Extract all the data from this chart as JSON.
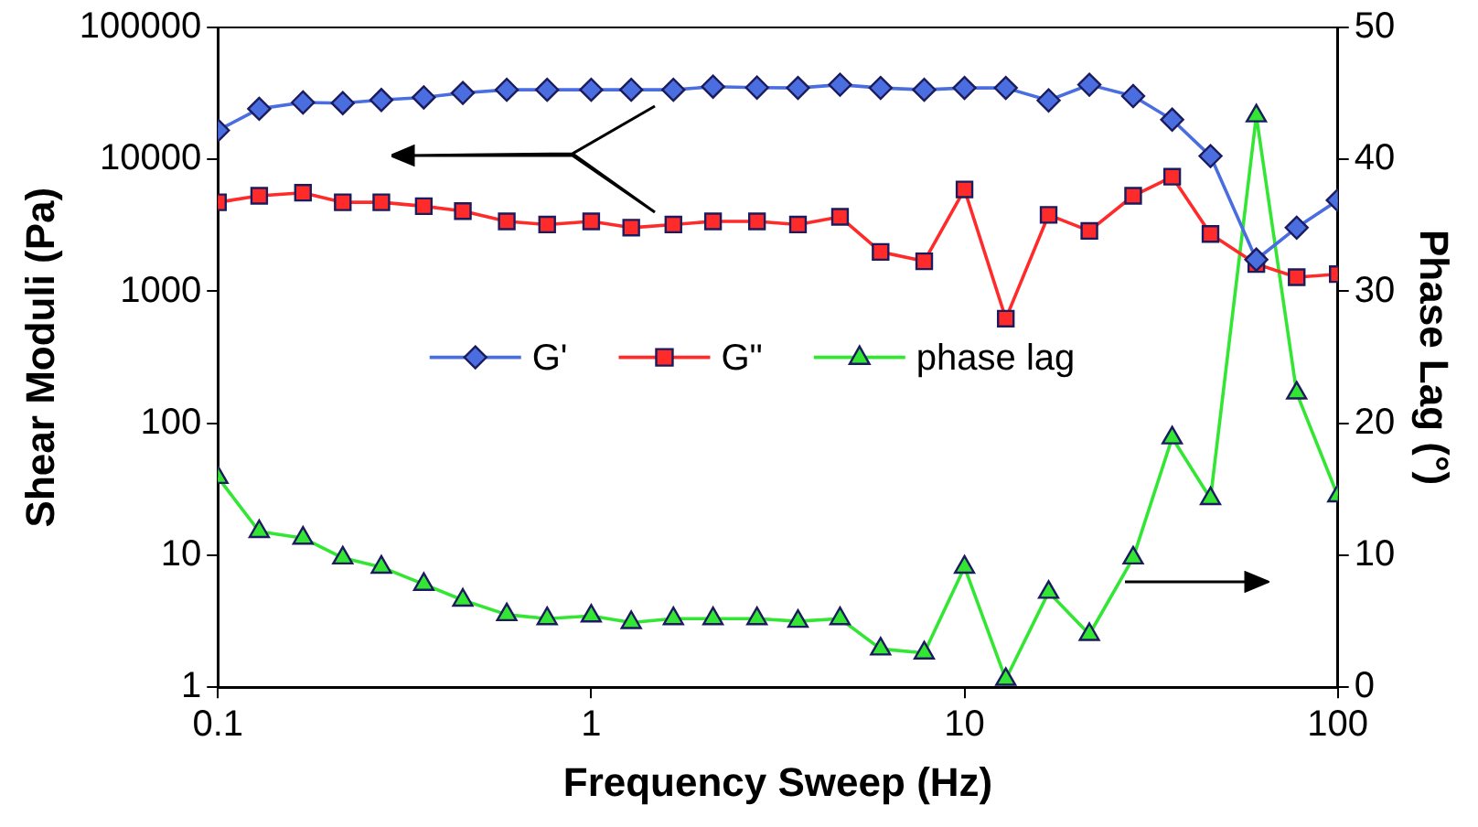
{
  "chart_data": {
    "type": "line",
    "xlabel": "Frequency Sweep (Hz)",
    "ylabel": "Shear Moduli (Pa)",
    "y2label": "Phase Lag (°)",
    "x": [
      0.1,
      0.129,
      0.169,
      0.216,
      0.274,
      0.356,
      0.453,
      0.594,
      0.762,
      1.0,
      1.28,
      1.66,
      2.12,
      2.78,
      3.58,
      4.64,
      5.96,
      7.8,
      10.0,
      12.9,
      16.8,
      21.6,
      28.3,
      36.0,
      45.6,
      60.5,
      77.6,
      100
    ],
    "series": [
      {
        "name": "G'",
        "color": "#4a6ee0",
        "marker": "diamond",
        "values": [
          16600,
          24200,
          27000,
          26700,
          28200,
          29500,
          31900,
          33700,
          33700,
          33700,
          33700,
          33700,
          35600,
          35000,
          34800,
          36800,
          34800,
          33700,
          34800,
          34800,
          28000,
          36800,
          30200,
          20000,
          10600,
          1740,
          3040,
          4900
        ]
      },
      {
        "name": "G\"",
        "color": "#ff2a2a",
        "marker": "square",
        "values": [
          4730,
          5300,
          5590,
          4730,
          4730,
          4420,
          4060,
          3390,
          3210,
          3390,
          3040,
          3210,
          3390,
          3390,
          3210,
          3670,
          1990,
          1690,
          5920,
          621,
          3800,
          2870,
          5300,
          7390,
          2720,
          1610,
          1280,
          1350
        ]
      },
      {
        "name": "phase lag",
        "color": "#33e633",
        "marker": "triangle",
        "axis": "y2",
        "values": [
          15.9,
          11.8,
          11.3,
          9.8,
          9.1,
          7.8,
          6.6,
          5.5,
          5.2,
          5.4,
          4.9,
          5.2,
          5.2,
          5.2,
          5.0,
          5.2,
          2.9,
          2.6,
          9.1,
          0.6,
          7.2,
          4.0,
          9.8,
          18.9,
          14.3,
          43.3,
          22.3,
          14.5
        ]
      }
    ],
    "log": "xy",
    "xlim": [
      0.1,
      100
    ],
    "xticks": [
      0.1,
      1,
      10,
      100
    ],
    "ylim": [
      1,
      100000
    ],
    "yticks": [
      1,
      10,
      100,
      1000,
      10000,
      100000
    ],
    "y2lim": [
      0,
      50
    ],
    "y2ticks": [
      0,
      10,
      20,
      30,
      40,
      50
    ],
    "grid": false,
    "legend": "center"
  }
}
